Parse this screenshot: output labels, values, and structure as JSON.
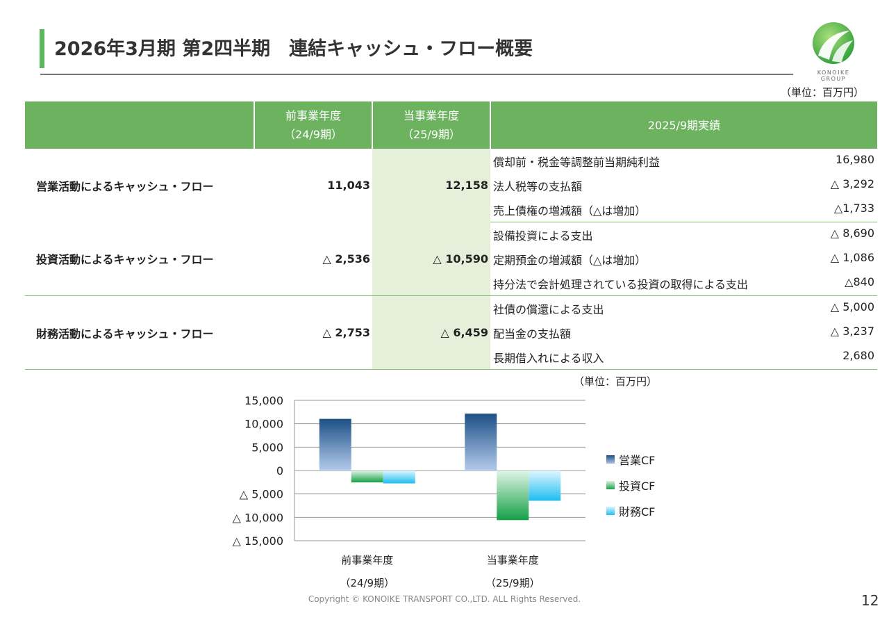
{
  "title": "2026年3月期 第2四半期　連結キャッシュ・フロー概要",
  "logo": {
    "text_line1": "KONOIKE",
    "text_line2": "GROUP"
  },
  "unit_label": "（単位：百万円）",
  "colors": {
    "accent": "#6db35f",
    "current_column": "#e6efd9"
  },
  "table": {
    "headers": {
      "prev": [
        "前事業年度",
        "（24/9期）"
      ],
      "curr": [
        "当事業年度",
        "（25/9期）"
      ],
      "detail": "2025/9期実績"
    },
    "groups": [
      {
        "label": "営業活動によるキャッシュ・フロー",
        "prev": "11,043",
        "curr": "12,158",
        "items": [
          {
            "name": "償却前・税金等調整前当期純利益",
            "value": "16,980"
          },
          {
            "name": "法人税等の支払額",
            "value": "△ 3,292"
          },
          {
            "name": "売上債権の増減額（△は増加）",
            "value": "△1,733"
          }
        ]
      },
      {
        "label": "投資活動によるキャッシュ・フロー",
        "prev": "△ 2,536",
        "curr": "△ 10,590",
        "items": [
          {
            "name": "設備投資による支出",
            "value": "△ 8,690"
          },
          {
            "name": "定期預金の増減額（△は増加）",
            "value": "△ 1,086"
          },
          {
            "name": "持分法で会計処理されている投資の取得による支出",
            "value": "△840"
          }
        ]
      },
      {
        "label": "財務活動によるキャッシュ・フロー",
        "prev": "△ 2,753",
        "curr": "△ 6,459",
        "items": [
          {
            "name": "社債の償還による支出",
            "value": "△ 5,000"
          },
          {
            "name": "配当金の支払額",
            "value": "△ 3,237"
          },
          {
            "name": "長期借入れによる収入",
            "value": "2,680"
          }
        ]
      }
    ]
  },
  "chart_unit_label": "（単位：百万円）",
  "chart_data": {
    "type": "bar",
    "title": "",
    "categories": [
      [
        "前事業年度",
        "（24/9期）"
      ],
      [
        "当事業年度",
        "（25/9期）"
      ]
    ],
    "series": [
      {
        "name": "営業CF",
        "values": [
          11043,
          12158
        ]
      },
      {
        "name": "投資CF",
        "values": [
          -2536,
          -10590
        ]
      },
      {
        "name": "財務CF",
        "values": [
          -2753,
          -6459
        ]
      }
    ],
    "ylim": [
      -15000,
      15000
    ],
    "yticks": [
      15000,
      10000,
      5000,
      0,
      -5000,
      -10000,
      -15000
    ],
    "ytick_labels": [
      "15,000",
      "10,000",
      "5,000",
      "0",
      "△ 5,000",
      "△ 10,000",
      "△ 15,000"
    ],
    "grid": true,
    "legend": "right"
  },
  "copyright": "Copyright © KONOIKE TRANSPORT CO.,LTD.  ALL Rights Reserved.",
  "page_number": "12"
}
